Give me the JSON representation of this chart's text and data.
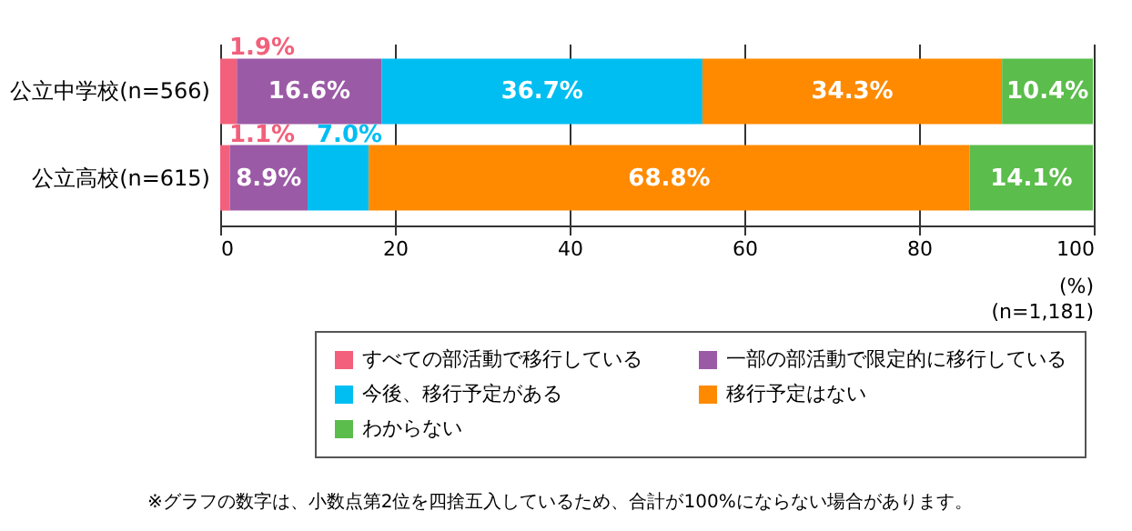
{
  "chart_data": {
    "type": "bar",
    "orientation": "horizontal",
    "stacked": true,
    "categories": [
      "公立中学校(n=566)",
      "公立高校(n=615)"
    ],
    "series": [
      {
        "name": "すべての部活動で移行している",
        "color": "#f2607b",
        "values": [
          1.9,
          1.1
        ],
        "value_labels": [
          "1.9%",
          "1.1%"
        ]
      },
      {
        "name": "一部の部活動で限定的に移行している",
        "color": "#9b5aa6",
        "values": [
          16.6,
          8.9
        ],
        "value_labels": [
          "16.6%",
          "8.9%"
        ]
      },
      {
        "name": "今後、移行予定がある",
        "color": "#00bef2",
        "values": [
          36.7,
          7.0
        ],
        "value_labels": [
          "36.7%",
          "7.0%"
        ]
      },
      {
        "name": "移行予定はない",
        "color": "#ff8a00",
        "values": [
          34.3,
          68.8
        ],
        "value_labels": [
          "34.3%",
          "68.8%"
        ]
      },
      {
        "name": "わからない",
        "color": "#5bbd4b",
        "values": [
          10.4,
          14.1
        ],
        "value_labels": [
          "10.4%",
          "14.1%"
        ]
      }
    ],
    "xlim": [
      0,
      100
    ],
    "xticks": [
      0,
      20,
      40,
      60,
      80,
      100
    ],
    "grid": "x",
    "legend": "bottom",
    "annotations": [
      "(%)",
      "(n=1,181)",
      "※グラフの数字は、小数点第2位を四捨五入しているため、合計が100%にならない場合があります。"
    ]
  }
}
